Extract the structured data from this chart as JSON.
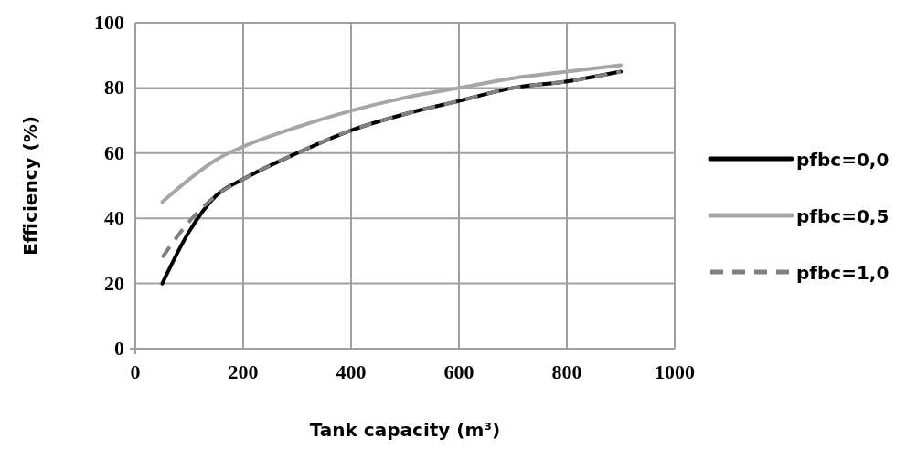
{
  "chart_data": {
    "type": "line",
    "xlabel": "Tank capacity (m³)",
    "ylabel": "Efficiency (%)",
    "x": [
      50,
      100,
      150,
      200,
      300,
      400,
      500,
      600,
      700,
      800,
      900
    ],
    "series": [
      {
        "name": "pfbc=0,0",
        "color": "#000000",
        "line_style": "solid",
        "values": [
          20,
          36,
          47,
          52,
          60,
          67,
          72,
          76,
          80,
          82,
          85
        ]
      },
      {
        "name": "pfbc=0,5",
        "color": "#a6a6a6",
        "line_style": "solid",
        "values": [
          45,
          52,
          58,
          62,
          68,
          73,
          77,
          80,
          83,
          85,
          87
        ]
      },
      {
        "name": "pfbc=1,0",
        "color": "#808080",
        "line_style": "dashed",
        "values": [
          28,
          39,
          47,
          52,
          60,
          67,
          72,
          76,
          80,
          82,
          85
        ]
      }
    ],
    "xlim": [
      0,
      1000
    ],
    "xticks": [
      0,
      200,
      400,
      600,
      800,
      1000
    ],
    "ylim": [
      0,
      100
    ],
    "yticks": [
      0,
      20,
      40,
      60,
      80,
      100
    ],
    "grid": true,
    "legend": "right"
  }
}
